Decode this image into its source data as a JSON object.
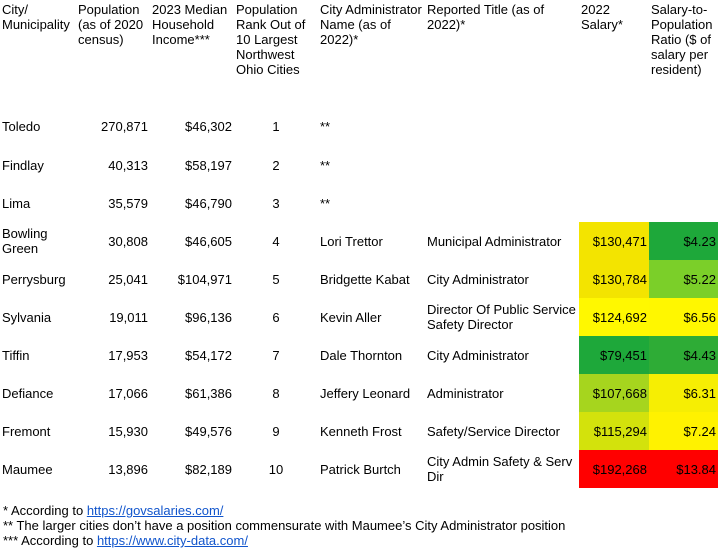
{
  "headers": {
    "city": "City/\nMunicipality",
    "population": "Population\n(as of 2020\ncensus)",
    "income": "2023 Median\nHousehold\nIncome***",
    "rank": "Population\nRank Out of\n10 Largest\nNorthwest\nOhio Cities",
    "admin": "City Administrator\nName (as of\n2022)*",
    "title": "Reported Title (as of\n2022)*",
    "salary": "2022\nSalary*",
    "ratio": "Salary-to-\nPopulation\nRatio ($ of\nsalary per\nresident)"
  },
  "rows": [
    {
      "city": "Toledo",
      "population": "270,871",
      "income": "$46,302",
      "rank": "1",
      "admin": "**",
      "title": "",
      "salary": "",
      "ratio": "",
      "salary_color": "#ffffff",
      "ratio_color": "#ffffff"
    },
    {
      "city": "Findlay",
      "population": "40,313",
      "income": "$58,197",
      "rank": "2",
      "admin": "**",
      "title": "",
      "salary": "",
      "ratio": "",
      "salary_color": "#ffffff",
      "ratio_color": "#ffffff"
    },
    {
      "city": "Lima",
      "population": "35,579",
      "income": "$46,790",
      "rank": "3",
      "admin": "**",
      "title": "",
      "salary": "",
      "ratio": "",
      "salary_color": "#ffffff",
      "ratio_color": "#ffffff"
    },
    {
      "city": "Bowling Green",
      "population": "30,808",
      "income": "$46,605",
      "rank": "4",
      "admin": "Lori Trettor",
      "title": "Municipal Administrator",
      "salary": "$130,471",
      "ratio": "$4.23",
      "salary_color": "#f3e400",
      "ratio_color": "#1ea83a"
    },
    {
      "city": "Perrysburg",
      "population": "25,041",
      "income": "$104,971",
      "rank": "5",
      "admin": "Bridgette Kabat",
      "title": "City Administrator",
      "salary": "$130,784",
      "ratio": "$5.22",
      "salary_color": "#f3e400",
      "ratio_color": "#7bcf29"
    },
    {
      "city": "Sylvania",
      "population": "19,011",
      "income": "$96,136",
      "rank": "6",
      "admin": "Kevin Aller",
      "title": "Director Of Public Service Safety Director",
      "salary": "$124,692",
      "ratio": "$6.56",
      "salary_color": "#fff800",
      "ratio_color": "#fff700"
    },
    {
      "city": "Tiffin",
      "population": "17,953",
      "income": "$54,172",
      "rank": "7",
      "admin": "Dale Thornton",
      "title": "City Administrator",
      "salary": "$79,451",
      "ratio": "$4.43",
      "salary_color": "#1ea83a",
      "ratio_color": "#2eac36"
    },
    {
      "city": "Defiance",
      "population": "17,066",
      "income": "$61,386",
      "rank": "8",
      "admin": "Jeffery Leonard",
      "title": "Administrator",
      "salary": "$107,668",
      "ratio": "$6.31",
      "salary_color": "#a6d51e",
      "ratio_color": "#f6ee03"
    },
    {
      "city": "Fremont",
      "population": "15,930",
      "income": "$49,576",
      "rank": "9",
      "admin": "Kenneth Frost",
      "title": "Safety/Service Director",
      "salary": "$115,294",
      "ratio": "$7.24",
      "salary_color": "#d3e20c",
      "ratio_color": "#fff200"
    },
    {
      "city": "Maumee",
      "population": "13,896",
      "income": "$82,189",
      "rank": "10",
      "admin": "Patrick Burtch",
      "title": "City Admin Safety & Serv Dir",
      "salary": "$192,268",
      "ratio": "$13.84",
      "salary_color": "#ff0000",
      "ratio_color": "#ff0000"
    }
  ],
  "footnotes": {
    "one_prefix": "* According to ",
    "one_link": "https://govsalaries.com/",
    "two": "** The larger cities don’t have a position commensurate with Maumee’s City Administrator position",
    "three_prefix": "*** According to ",
    "three_link": "https://www.city-data.com/"
  }
}
